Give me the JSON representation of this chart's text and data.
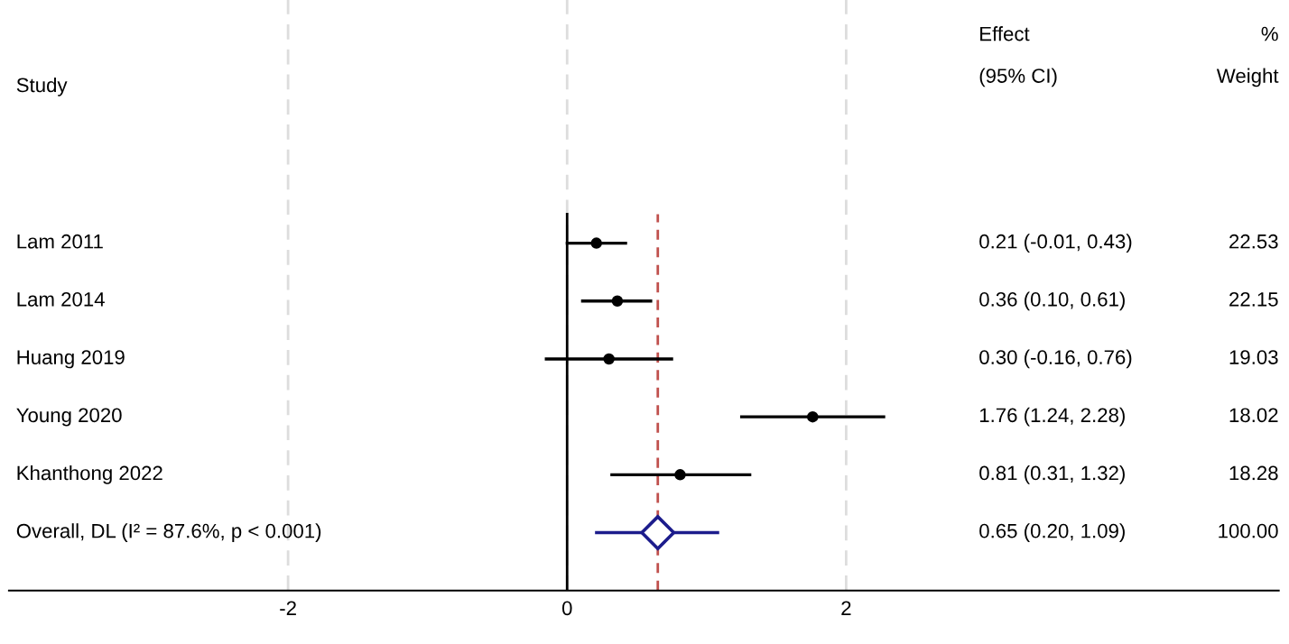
{
  "chart_data": {
    "type": "scatter",
    "orientation": "horizontal",
    "categories": [
      "Lam 2011",
      "Lam 2014",
      "Huang 2019",
      "Young 2020",
      "Khanthong 2022",
      "Overall, DL (I² = 87.6%, p < 0.001)"
    ],
    "series": [
      {
        "color": "#000000",
        "marker": "circle",
        "values": [
          0.21,
          0.36,
          0.3,
          1.76,
          0.81,
          null
        ],
        "errors": [
          [
            -0.01,
            0.43
          ],
          [
            0.1,
            0.61
          ],
          [
            -0.16,
            0.76
          ],
          [
            1.24,
            2.28
          ],
          [
            0.31,
            1.32
          ],
          null
        ]
      },
      {
        "color": "#1c1c8c",
        "marker": "diamond",
        "values": [
          null,
          null,
          null,
          null,
          null,
          0.65
        ],
        "errors": [
          null,
          null,
          null,
          null,
          null,
          [
            0.2,
            1.09
          ]
        ]
      }
    ],
    "xlim": [
      -4,
      5.1
    ],
    "xticks": [
      -2,
      0,
      2
    ],
    "grid": "x",
    "ref_lines": [
      {
        "axis": "x",
        "value": 0,
        "color": "#000000",
        "line_style": "solid"
      },
      {
        "axis": "x",
        "value": 0.65,
        "color": "#c0504d",
        "line_style": "dashed"
      }
    ],
    "annotations": [
      "Study",
      "Effect\n(95% CI)",
      "%\nWeight",
      "0.21 (-0.01, 0.43)",
      "0.36 (0.10, 0.61)",
      "0.30 (-0.16, 0.76)",
      "1.76 (1.24, 2.28)",
      "0.81 (0.31, 1.32)",
      "0.65 (0.20, 1.09)",
      "22.53",
      "22.15",
      "19.03",
      "18.02",
      "18.28",
      "100.00"
    ]
  }
}
